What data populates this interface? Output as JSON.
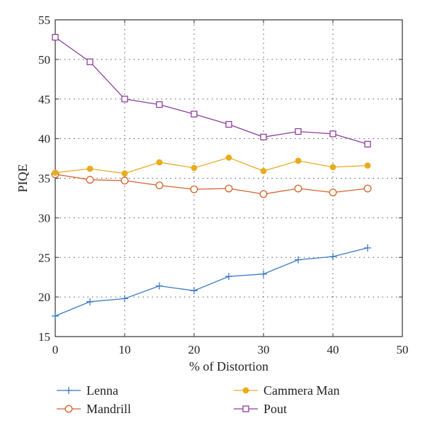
{
  "chart_data": {
    "type": "line",
    "xlabel": "% of Distortion",
    "ylabel": "PIQE",
    "xlim": [
      0,
      50
    ],
    "ylim": [
      15,
      55
    ],
    "xticks": [
      0,
      10,
      20,
      30,
      40,
      50
    ],
    "yticks": [
      15,
      20,
      25,
      30,
      35,
      40,
      45,
      50,
      55
    ],
    "grid": true,
    "legend_position": "bottom",
    "series": [
      {
        "name": "Lenna",
        "color": "#3a78c2",
        "marker": "plus",
        "x": [
          0,
          5,
          10,
          15,
          20,
          25,
          30,
          35,
          40,
          45
        ],
        "y": [
          17.6,
          19.4,
          19.8,
          21.4,
          20.8,
          22.6,
          22.9,
          24.7,
          25.1,
          26.2
        ]
      },
      {
        "name": "Mandrill",
        "color": "#d4622a",
        "marker": "circle-open",
        "x": [
          0,
          5,
          10,
          15,
          20,
          25,
          30,
          35,
          40,
          45
        ],
        "y": [
          35.5,
          34.8,
          34.7,
          34.1,
          33.6,
          33.7,
          33.0,
          33.7,
          33.2,
          33.7
        ]
      },
      {
        "name": "Cammera Man",
        "color": "#e8ac1f",
        "marker": "circle-filled",
        "x": [
          0,
          5,
          10,
          15,
          20,
          25,
          30,
          35,
          40,
          45
        ],
        "y": [
          35.7,
          36.2,
          35.6,
          37.0,
          36.3,
          37.6,
          35.9,
          37.2,
          36.4,
          36.6
        ]
      },
      {
        "name": "Pout",
        "color": "#8c3f9a",
        "marker": "square-open",
        "x": [
          0,
          5,
          10,
          15,
          20,
          25,
          30,
          35,
          40,
          45
        ],
        "y": [
          52.8,
          49.7,
          45.0,
          44.3,
          43.1,
          41.8,
          40.2,
          40.9,
          40.6,
          39.3
        ]
      }
    ]
  }
}
